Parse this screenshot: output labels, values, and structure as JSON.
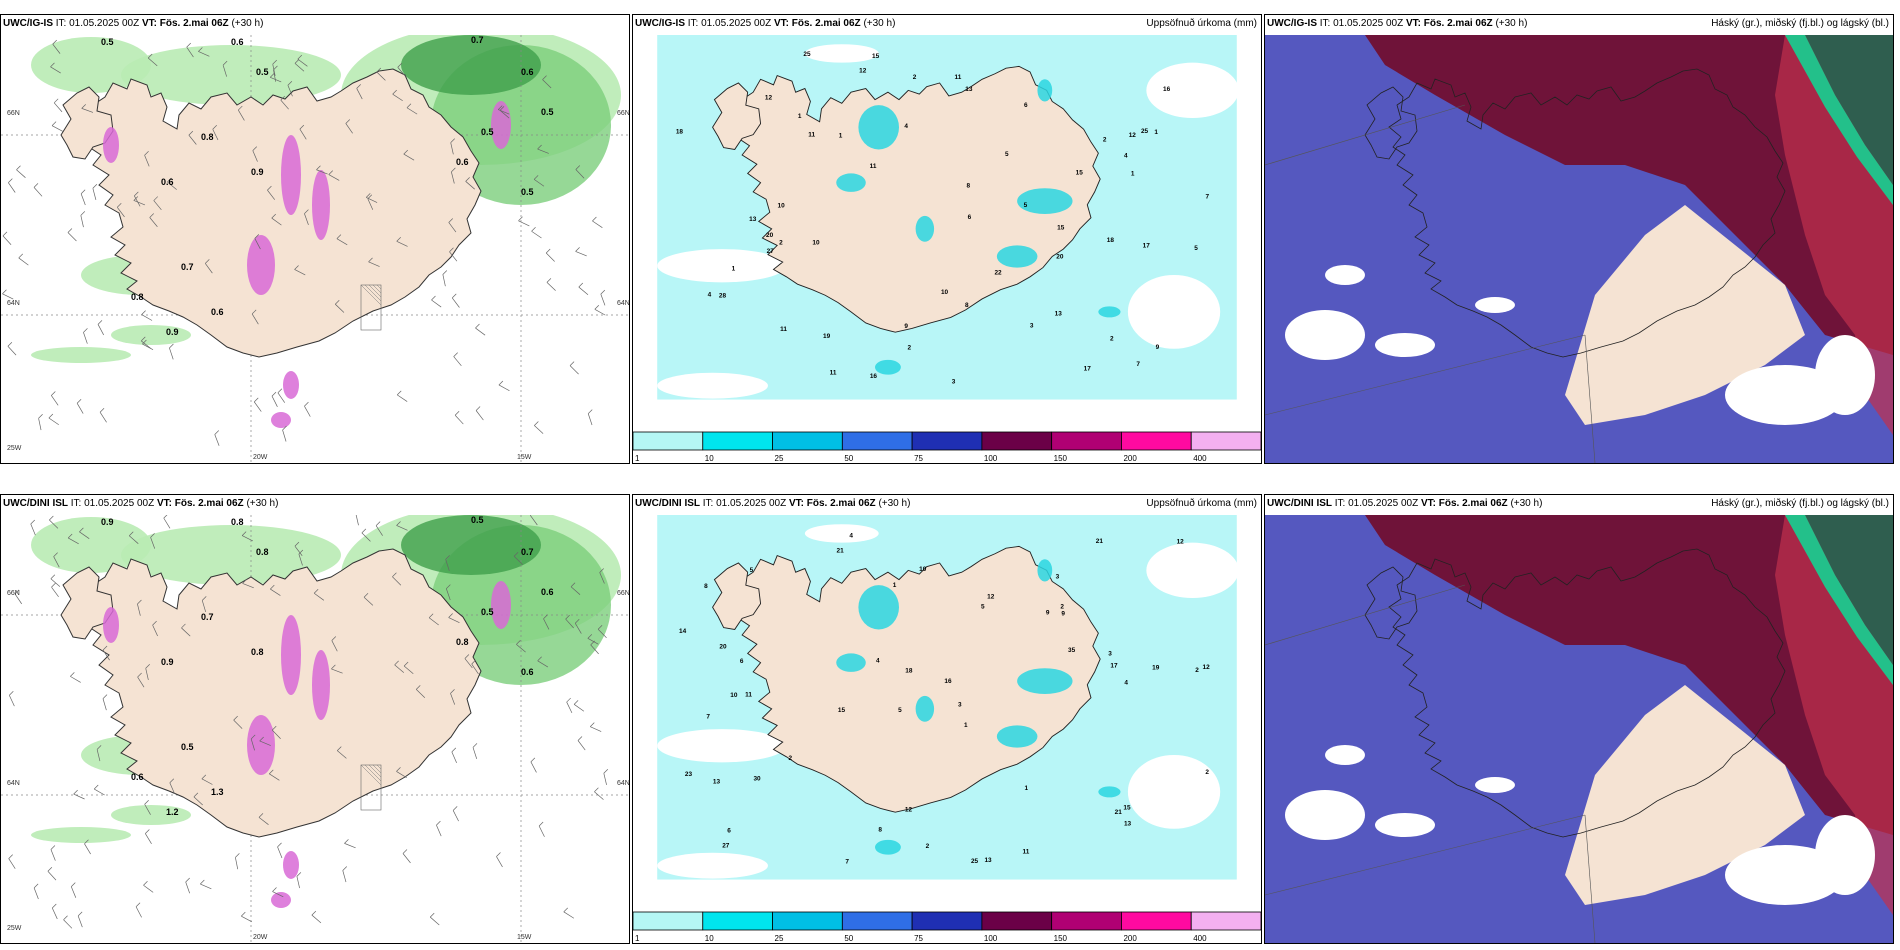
{
  "panels": [
    {
      "id": "p1",
      "model": "UWC/IG-IS",
      "it_label": "IT:",
      "it": "01.05.2025 00Z",
      "vt_label": "VT: Fös. 2.mai 06Z",
      "offset": "(+30 h)",
      "right_title": ""
    },
    {
      "id": "p2",
      "model": "UWC/IG-IS",
      "it_label": "IT:",
      "it": "01.05.2025 00Z",
      "vt_label": "VT: Fös. 2.mai 06Z",
      "offset": "(+30 h)",
      "right_title": "Uppsöfnuð úrkoma (mm)"
    },
    {
      "id": "p3",
      "model": "UWC/IG-IS",
      "it_label": "IT:",
      "it": "01.05.2025 00Z",
      "vt_label": "VT: Fös. 2.mai 06Z",
      "offset": "(+30 h)",
      "right_title": "Háský (gr.), miðský (fj.bl.) og lágský (bl.)"
    },
    {
      "id": "p4",
      "model": "UWC/DINI ISL",
      "it_label": "IT:",
      "it": "01.05.2025 00Z",
      "vt_label": "VT: Fös. 2.mai 06Z",
      "offset": "(+30 h)",
      "right_title": ""
    },
    {
      "id": "p5",
      "model": "UWC/DINI ISL",
      "it_label": "IT:",
      "it": "01.05.2025 00Z",
      "vt_label": "VT: Fös. 2.mai 06Z",
      "offset": "(+30 h)",
      "right_title": "Uppsöfnuð úrkoma (mm)"
    },
    {
      "id": "p6",
      "model": "UWC/DINI ISL",
      "it_label": "IT:",
      "it": "01.05.2025 00Z",
      "vt_label": "VT: Fös. 2.mai 06Z",
      "offset": "(+30 h)",
      "right_title": "Háský (gr.), miðský (fj.bl.) og lágský (bl.)"
    }
  ],
  "axes": {
    "lat_labels": [
      "66N",
      "64N",
      "25W"
    ],
    "lat_right": [
      "66N",
      "64N"
    ],
    "lon_labels": [
      "20W",
      "15W"
    ]
  },
  "legend": {
    "ticks": [
      "1",
      "10",
      "25",
      "50",
      "75",
      "100",
      "150",
      "200",
      "400"
    ],
    "colors": [
      "#b5f7f5",
      "#00e5ee",
      "#00bfe5",
      "#2f6ee6",
      "#1f2fb3",
      "#6b0047",
      "#b00073",
      "#ff0aa0",
      "#f4b0f0"
    ]
  },
  "colors": {
    "land": "#f5e3d3",
    "sea_precip": "#b8f6f7",
    "precip_mid": "#2ad6e0",
    "green_light": "#b9ebb4",
    "green_mid": "#7cce7c",
    "green_dark": "#3e9f4b",
    "magenta": "#d86ad6",
    "cloud_high": "#6f1339",
    "cloud_mid": "#c0304d",
    "cloud_low": "#5558bf",
    "cloud_deep": "#2f5e4f",
    "cloud_teal": "#23c08a"
  },
  "precip_numbers_top": [
    "5",
    "3",
    "2",
    "4",
    "1",
    "11",
    "8",
    "9",
    "7",
    "5",
    "18",
    "25",
    "28",
    "17",
    "15",
    "20",
    "12",
    "13",
    "11",
    "10",
    "22",
    "6",
    "2",
    "16",
    "20",
    "15",
    "12",
    "17",
    "9",
    "25",
    "13",
    "16",
    "19",
    "27",
    "10",
    "1",
    "2",
    "3",
    "4",
    "8",
    "1",
    "1",
    "6",
    "11",
    "11",
    "13",
    "11",
    "12",
    "7",
    "5",
    "1",
    "4",
    "2",
    "15",
    "18",
    "2",
    "10"
  ],
  "precip_numbers_bottom": [
    "4",
    "3",
    "2",
    "5",
    "1",
    "11",
    "8",
    "9",
    "7",
    "5",
    "16",
    "27",
    "21",
    "15",
    "25",
    "13",
    "12",
    "21",
    "35",
    "2",
    "6",
    "10",
    "12",
    "19",
    "23",
    "20",
    "18",
    "17",
    "15",
    "13",
    "21",
    "12",
    "30",
    "4",
    "1",
    "2",
    "3",
    "8",
    "12",
    "10",
    "6",
    "7",
    "11",
    "5",
    "2",
    "9",
    "13",
    "2",
    "14",
    "3",
    "1",
    "4"
  ],
  "green_numbers_top": [
    "0.5",
    "0.6",
    "0.5",
    "0.7",
    "0.6",
    "0.5",
    "0.8",
    "0.9",
    "0.6",
    "0.5",
    "0.7",
    "0.6",
    "0.9",
    "0.8",
    "0.5",
    "0.6"
  ],
  "green_numbers_bottom": [
    "0.9",
    "0.8",
    "0.8",
    "0.5",
    "0.7",
    "0.6",
    "0.7",
    "0.8",
    "0.9",
    "0.6",
    "0.5",
    "1.3",
    "1.2",
    "0.6",
    "0.5",
    "0.8"
  ]
}
